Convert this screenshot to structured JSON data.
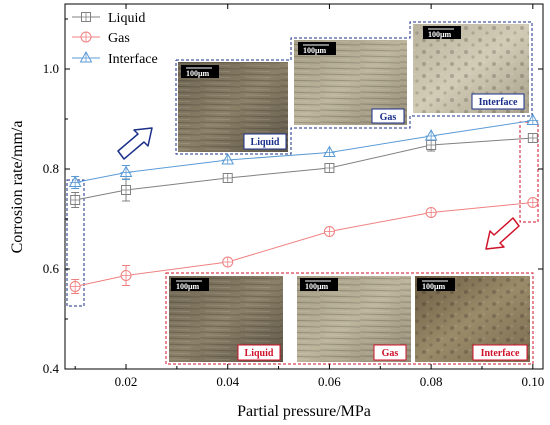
{
  "chart_data": {
    "type": "line",
    "xlabel": "Partial pressure/MPa",
    "ylabel": "Corrosion rate/mm/a",
    "xlim": [
      0.008,
      0.102
    ],
    "ylim": [
      0.4,
      1.13
    ],
    "xticks": [
      0.02,
      0.04,
      0.06,
      0.08,
      0.1
    ],
    "xtick_labels": [
      "0.02",
      "0.04",
      "0.06",
      "0.08",
      "0.10"
    ],
    "yticks": [
      0.4,
      0.6,
      0.8,
      1.0
    ],
    "ytick_labels": [
      "0.4",
      "0.6",
      "0.8",
      "1.0"
    ],
    "legend_position": "top-left",
    "x": [
      0.01,
      0.02,
      0.04,
      0.06,
      0.08,
      0.1
    ],
    "series": [
      {
        "name": "Liquid",
        "marker": "square",
        "color": "#808080",
        "values": [
          0.738,
          0.758,
          0.782,
          0.802,
          0.848,
          0.862
        ],
        "errors": [
          0.015,
          0.022,
          0.0,
          0.0,
          0.012,
          0.0
        ]
      },
      {
        "name": "Gas",
        "marker": "circle",
        "color": "#f08080",
        "values": [
          0.565,
          0.587,
          0.614,
          0.675,
          0.713,
          0.733
        ],
        "errors": [
          0.014,
          0.02,
          0.0,
          0.0,
          0.0,
          0.0
        ]
      },
      {
        "name": "Interface",
        "marker": "triangle",
        "color": "#5b9bd5",
        "values": [
          0.773,
          0.793,
          0.818,
          0.833,
          0.866,
          0.897
        ],
        "errors": [
          0.012,
          0.014,
          0.0,
          0.0,
          0.0,
          0.0
        ]
      }
    ],
    "insets": {
      "top": {
        "labels": [
          "Liquid",
          "Gas",
          "Interface"
        ],
        "scale": "100μm",
        "frame_color": "#1a2f8a"
      },
      "bottom": {
        "labels": [
          "Liquid",
          "Gas",
          "Interface"
        ],
        "scale": "100μm",
        "frame_color": "#d0122a"
      }
    },
    "grid": false
  }
}
